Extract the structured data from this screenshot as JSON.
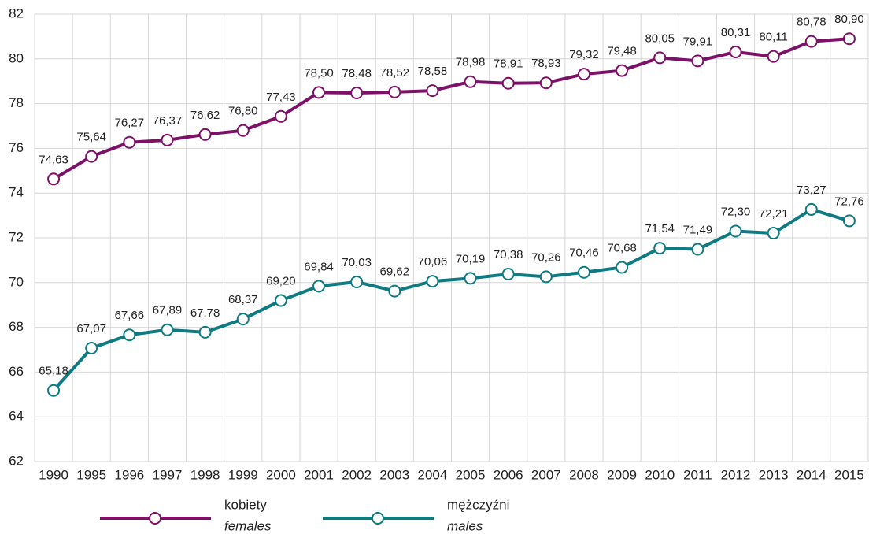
{
  "chart_data": {
    "type": "line",
    "categories": [
      "1990",
      "1995",
      "1996",
      "1997",
      "1998",
      "1999",
      "2000",
      "2001",
      "2002",
      "2003",
      "2004",
      "2005",
      "2006",
      "2007",
      "2008",
      "2009",
      "2010",
      "2011",
      "2012",
      "2013",
      "2014",
      "2015"
    ],
    "series": [
      {
        "name": "kobiety",
        "subname": "females",
        "color": "#7d1168",
        "values": [
          74.63,
          75.64,
          76.27,
          76.37,
          76.62,
          76.8,
          77.43,
          78.5,
          78.48,
          78.52,
          78.58,
          78.98,
          78.91,
          78.93,
          79.32,
          79.48,
          80.05,
          79.91,
          80.31,
          80.11,
          80.78,
          80.9
        ],
        "value_labels": [
          "74,63",
          "75,64",
          "76,27",
          "76,37",
          "76,62",
          "76,80",
          "77,43",
          "78,50",
          "78,48",
          "78,52",
          "78,58",
          "78,98",
          "78,91",
          "78,93",
          "79,32",
          "79,48",
          "80,05",
          "79,91",
          "80,31",
          "80,11",
          "80,78",
          "80,90"
        ]
      },
      {
        "name": "mężczyźni",
        "subname": "males",
        "color": "#0e7a82",
        "values": [
          65.18,
          67.07,
          67.66,
          67.89,
          67.78,
          68.37,
          69.2,
          69.84,
          70.03,
          69.62,
          70.06,
          70.19,
          70.38,
          70.26,
          70.46,
          70.68,
          71.54,
          71.49,
          72.3,
          72.21,
          73.27,
          72.76
        ],
        "value_labels": [
          "65,18",
          "67,07",
          "67,66",
          "67,89",
          "67,78",
          "68,37",
          "69,20",
          "69,84",
          "70,03",
          "69,62",
          "70,06",
          "70,19",
          "70,38",
          "70,26",
          "70,46",
          "70,68",
          "71,54",
          "71,49",
          "72,30",
          "72,21",
          "73,27",
          "72,76"
        ]
      }
    ],
    "ylim": [
      62,
      82
    ],
    "yticks": [
      62,
      64,
      66,
      68,
      70,
      72,
      74,
      76,
      78,
      80,
      82
    ],
    "grid": true,
    "legend": "bottom"
  }
}
